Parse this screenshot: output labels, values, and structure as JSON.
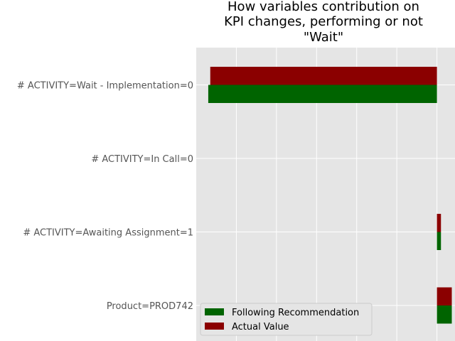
{
  "chart_data": {
    "type": "bar",
    "orientation": "horizontal",
    "title_lines": [
      "How variables contribution on",
      "KPI changes, performing or not",
      "\"Wait\""
    ],
    "categories": [
      "# ACTIVITY=Wait - Implementation=0",
      "# ACTIVITY=In Call=0",
      "# ACTIVITY=Awaiting Assignment=1",
      "Product=PROD742"
    ],
    "series": [
      {
        "name": "Following Recommendation",
        "color": "#006400",
        "values": [
          -0.057,
          0.0,
          0.001,
          0.0037
        ]
      },
      {
        "name": "Actual Value",
        "color": "#8b0000",
        "values": [
          -0.0565,
          0.0,
          0.001,
          0.0037
        ]
      }
    ],
    "xlim": [
      -0.06,
      0.0045
    ],
    "gridlines_x": [
      -0.05,
      -0.04,
      -0.03,
      -0.02,
      -0.01,
      0.0
    ],
    "grid": true,
    "background_color": "#e5e5e5",
    "legend_position": "lower-left"
  }
}
